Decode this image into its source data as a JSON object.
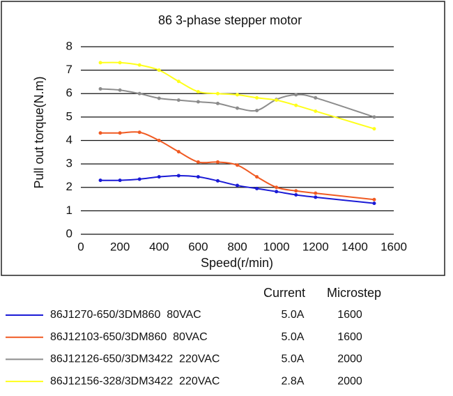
{
  "chart_data": {
    "type": "line",
    "title": "86 3-phase stepper motor",
    "x_label": "Speed(r/min)",
    "y_label": "Pull out torque(N.m)",
    "x": [
      100,
      200,
      300,
      400,
      500,
      600,
      700,
      800,
      900,
      1000,
      1100,
      1200,
      1500
    ],
    "xlim": [
      0,
      1600
    ],
    "xticks": [
      0,
      200,
      400,
      600,
      800,
      1000,
      1200,
      1400,
      1600
    ],
    "ylim": [
      0,
      8
    ],
    "yticks": [
      0,
      1,
      2,
      3,
      4,
      5,
      6,
      7,
      8
    ],
    "grid": true,
    "series": [
      {
        "name": "86J1270-650/3DM860  80VAC",
        "color": "#1a1ad6",
        "values": [
          2.3,
          2.3,
          2.35,
          2.45,
          2.5,
          2.45,
          2.28,
          2.08,
          1.95,
          1.82,
          1.68,
          1.58,
          1.32
        ]
      },
      {
        "name": "86J12103-650/3DM860  80VAC",
        "color": "#f05a22",
        "values": [
          4.32,
          4.32,
          4.35,
          4.0,
          3.52,
          3.08,
          3.08,
          2.95,
          2.45,
          2.0,
          1.85,
          1.75,
          1.48
        ]
      },
      {
        "name": "86J12126-650/3DM3422  220VAC",
        "color": "#8c8c8c",
        "values": [
          6.2,
          6.15,
          6.0,
          5.8,
          5.72,
          5.65,
          5.58,
          5.38,
          5.28,
          5.75,
          5.95,
          5.82,
          5.0
        ]
      },
      {
        "name": "86J12156-328/3DM3422  220VAC",
        "color": "#ffff1a",
        "values": [
          7.32,
          7.32,
          7.22,
          7.0,
          6.52,
          6.08,
          6.0,
          5.95,
          5.82,
          5.72,
          5.5,
          5.25,
          4.5
        ]
      }
    ]
  },
  "legend_table": {
    "headers": [
      "Current",
      "Microstep"
    ],
    "rows": [
      [
        "5.0A",
        "1600"
      ],
      [
        "5.0A",
        "1600"
      ],
      [
        "5.0A",
        "2000"
      ],
      [
        "2.8A",
        "2000"
      ]
    ]
  }
}
